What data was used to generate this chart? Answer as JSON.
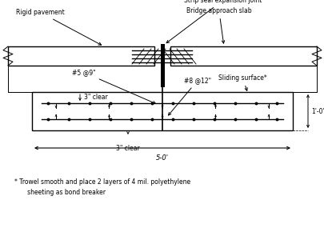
{
  "bg_color": "#ffffff",
  "line_color": "#000000",
  "fig_width": 4.06,
  "fig_height": 2.85,
  "dpi": 100,
  "labels": {
    "strip_seal": "Strip seal expansion joint",
    "rigid_pavement": "Rigid pavement",
    "bridge_approach": "Bridge approach slab",
    "rebar_left": "#5 @9\"",
    "rebar_right": "#8 @12\"",
    "sliding_surface": "Sliding surface*",
    "clear_top": "3\" clear",
    "clear_bottom": "3\" clear",
    "width_label": "5-0'",
    "depth_label": "1'-0\"",
    "footnote_line1": "* Trowel smooth and place 2 layers of 4 mil. polyethylene",
    "footnote_line2": "   sheeting as bond breaker"
  }
}
